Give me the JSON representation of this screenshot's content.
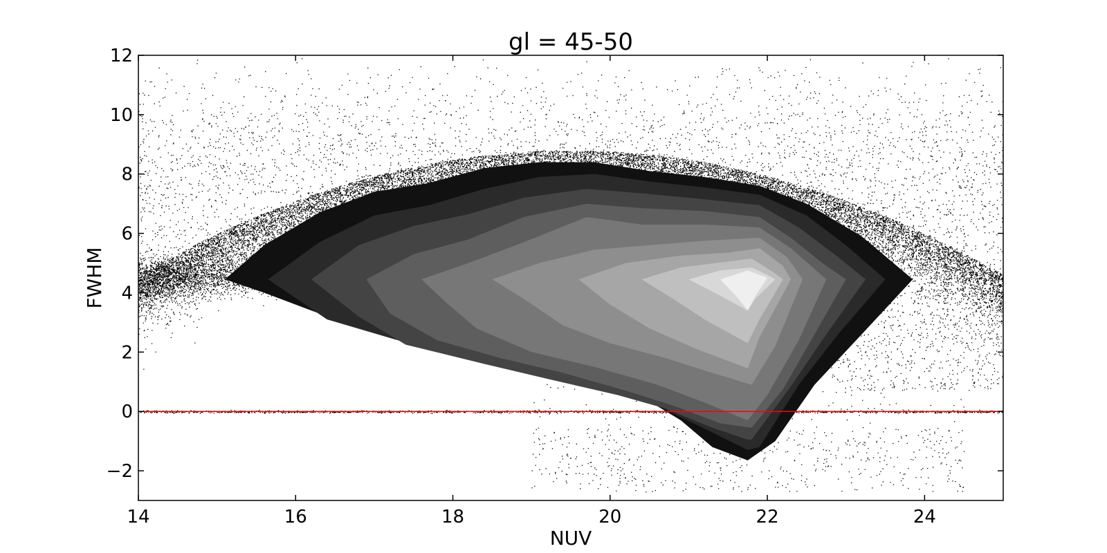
{
  "chart_data": {
    "type": "scatter",
    "title": "gl = 45-50",
    "xlabel": "NUV",
    "ylabel": "FWHM",
    "xlim": [
      14,
      25
    ],
    "ylim": [
      -3,
      12
    ],
    "xticks": [
      14,
      16,
      18,
      20,
      22,
      24
    ],
    "xtick_labels": [
      "14",
      "16",
      "18",
      "20",
      "22",
      "24"
    ],
    "yticks": [
      -2,
      0,
      2,
      4,
      6,
      8,
      10,
      12
    ],
    "ytick_labels": [
      "−2",
      "0",
      "2",
      "4",
      "6",
      "8",
      "10",
      "12"
    ],
    "grid": false,
    "reference_line": {
      "y": 0,
      "color": "#ff0000"
    },
    "scatter": {
      "color": "#000000",
      "approx_points": 26000
    },
    "density_contours": {
      "colors": [
        "#111111",
        "#2a2a2a",
        "#444444",
        "#5e5e5e",
        "#777777",
        "#8e8e8e",
        "#a6a6a6",
        "#bfbfbf",
        "#d8d8d8",
        "#efefef"
      ],
      "levels": [
        [
          [
            15.1,
            4.45
          ],
          [
            15.6,
            5.6
          ],
          [
            16.3,
            6.7
          ],
          [
            17.0,
            7.4
          ],
          [
            17.7,
            7.7
          ],
          [
            18.4,
            8.2
          ],
          [
            19.1,
            8.4
          ],
          [
            19.8,
            8.4
          ],
          [
            20.5,
            8.1
          ],
          [
            21.2,
            7.9
          ],
          [
            21.9,
            7.6
          ],
          [
            22.5,
            7.0
          ],
          [
            23.2,
            5.9
          ],
          [
            23.85,
            4.45
          ],
          [
            23.2,
            2.6
          ],
          [
            22.6,
            0.9
          ],
          [
            22.1,
            -1.0
          ],
          [
            21.75,
            -1.65
          ],
          [
            21.3,
            -1.2
          ],
          [
            20.9,
            -0.3
          ],
          [
            20.4,
            0.5
          ],
          [
            19.8,
            1.0
          ],
          [
            18.9,
            1.5
          ],
          [
            18.0,
            2.0
          ],
          [
            17.2,
            2.6
          ],
          [
            16.3,
            3.3
          ],
          [
            15.6,
            4.0
          ]
        ],
        [
          [
            15.65,
            4.45
          ],
          [
            16.3,
            5.7
          ],
          [
            17.0,
            6.6
          ],
          [
            17.7,
            6.95
          ],
          [
            18.4,
            7.5
          ],
          [
            19.1,
            7.9
          ],
          [
            19.8,
            8.0
          ],
          [
            20.5,
            7.75
          ],
          [
            21.2,
            7.55
          ],
          [
            21.9,
            7.3
          ],
          [
            22.5,
            6.6
          ],
          [
            23.0,
            5.6
          ],
          [
            23.5,
            4.45
          ],
          [
            22.9,
            2.6
          ],
          [
            22.4,
            0.9
          ],
          [
            21.9,
            -1.2
          ],
          [
            21.75,
            -1.3
          ],
          [
            21.1,
            -0.45
          ],
          [
            20.6,
            0.2
          ],
          [
            20.0,
            0.65
          ],
          [
            19.1,
            1.25
          ],
          [
            18.2,
            1.8
          ],
          [
            17.3,
            2.4
          ],
          [
            16.4,
            3.1
          ]
        ],
        [
          [
            16.2,
            4.45
          ],
          [
            16.8,
            5.6
          ],
          [
            17.5,
            6.25
          ],
          [
            18.2,
            6.65
          ],
          [
            18.9,
            7.2
          ],
          [
            19.7,
            7.5
          ],
          [
            20.4,
            7.35
          ],
          [
            21.2,
            7.15
          ],
          [
            21.9,
            6.95
          ],
          [
            22.4,
            6.2
          ],
          [
            22.9,
            5.2
          ],
          [
            23.25,
            4.45
          ],
          [
            22.75,
            2.6
          ],
          [
            22.3,
            0.85
          ],
          [
            21.8,
            -0.95
          ],
          [
            21.75,
            -0.95
          ],
          [
            21.3,
            -0.55
          ],
          [
            20.7,
            0.1
          ],
          [
            20.1,
            0.55
          ],
          [
            19.2,
            1.1
          ],
          [
            18.4,
            1.6
          ],
          [
            17.4,
            2.25
          ],
          [
            16.8,
            3.2
          ]
        ],
        [
          [
            16.9,
            4.45
          ],
          [
            17.5,
            5.3
          ],
          [
            18.2,
            5.8
          ],
          [
            18.9,
            6.55
          ],
          [
            19.7,
            7.0
          ],
          [
            20.4,
            6.85
          ],
          [
            21.2,
            6.75
          ],
          [
            21.9,
            6.55
          ],
          [
            22.3,
            5.85
          ],
          [
            22.7,
            5.0
          ],
          [
            23.0,
            4.45
          ],
          [
            22.6,
            2.6
          ],
          [
            22.2,
            0.75
          ],
          [
            21.8,
            -0.55
          ],
          [
            21.4,
            -0.4
          ],
          [
            20.8,
            0.2
          ],
          [
            20.2,
            0.7
          ],
          [
            19.4,
            1.3
          ],
          [
            18.6,
            1.8
          ],
          [
            17.8,
            2.4
          ],
          [
            17.2,
            3.3
          ]
        ],
        [
          [
            17.6,
            4.45
          ],
          [
            18.2,
            5.0
          ],
          [
            18.9,
            5.7
          ],
          [
            19.7,
            6.55
          ],
          [
            20.4,
            6.3
          ],
          [
            21.2,
            6.3
          ],
          [
            21.9,
            6.2
          ],
          [
            22.3,
            5.5
          ],
          [
            22.6,
            4.8
          ],
          [
            22.75,
            4.45
          ],
          [
            22.4,
            2.4
          ],
          [
            22.0,
            0.55
          ],
          [
            21.75,
            -0.3
          ],
          [
            21.2,
            0.3
          ],
          [
            20.6,
            0.9
          ],
          [
            19.8,
            1.5
          ],
          [
            19.0,
            2.0
          ],
          [
            18.3,
            2.8
          ],
          [
            17.9,
            3.7
          ]
        ],
        [
          [
            18.5,
            4.45
          ],
          [
            19.1,
            5.0
          ],
          [
            19.8,
            5.45
          ],
          [
            20.5,
            5.6
          ],
          [
            21.2,
            5.75
          ],
          [
            21.9,
            5.85
          ],
          [
            22.25,
            5.2
          ],
          [
            22.45,
            4.45
          ],
          [
            22.1,
            2.2
          ],
          [
            21.8,
            0.9
          ],
          [
            21.3,
            1.3
          ],
          [
            20.7,
            1.8
          ],
          [
            20.0,
            2.3
          ],
          [
            19.4,
            2.9
          ],
          [
            18.9,
            3.8
          ]
        ],
        [
          [
            19.6,
            4.45
          ],
          [
            20.2,
            5.0
          ],
          [
            20.9,
            5.25
          ],
          [
            21.5,
            5.35
          ],
          [
            21.9,
            5.5
          ],
          [
            22.2,
            4.9
          ],
          [
            22.3,
            4.45
          ],
          [
            21.9,
            2.5
          ],
          [
            21.75,
            1.45
          ],
          [
            21.1,
            2.1
          ],
          [
            20.5,
            2.8
          ],
          [
            20.0,
            3.6
          ]
        ],
        [
          [
            20.4,
            4.45
          ],
          [
            20.9,
            4.85
          ],
          [
            21.5,
            5.05
          ],
          [
            21.8,
            5.15
          ],
          [
            22.1,
            4.65
          ],
          [
            22.2,
            4.45
          ],
          [
            21.9,
            3.1
          ],
          [
            21.75,
            2.3
          ],
          [
            21.2,
            3.1
          ],
          [
            20.8,
            3.8
          ]
        ],
        [
          [
            21.0,
            4.45
          ],
          [
            21.4,
            4.75
          ],
          [
            21.8,
            4.85
          ],
          [
            22.0,
            4.6
          ],
          [
            22.1,
            4.45
          ],
          [
            21.85,
            3.8
          ],
          [
            21.75,
            3.4
          ],
          [
            21.4,
            3.9
          ]
        ],
        [
          [
            21.4,
            4.45
          ],
          [
            21.75,
            4.75
          ],
          [
            22.0,
            4.5
          ],
          [
            21.85,
            3.9
          ],
          [
            21.75,
            3.4
          ],
          [
            21.6,
            3.9
          ]
        ]
      ]
    }
  }
}
